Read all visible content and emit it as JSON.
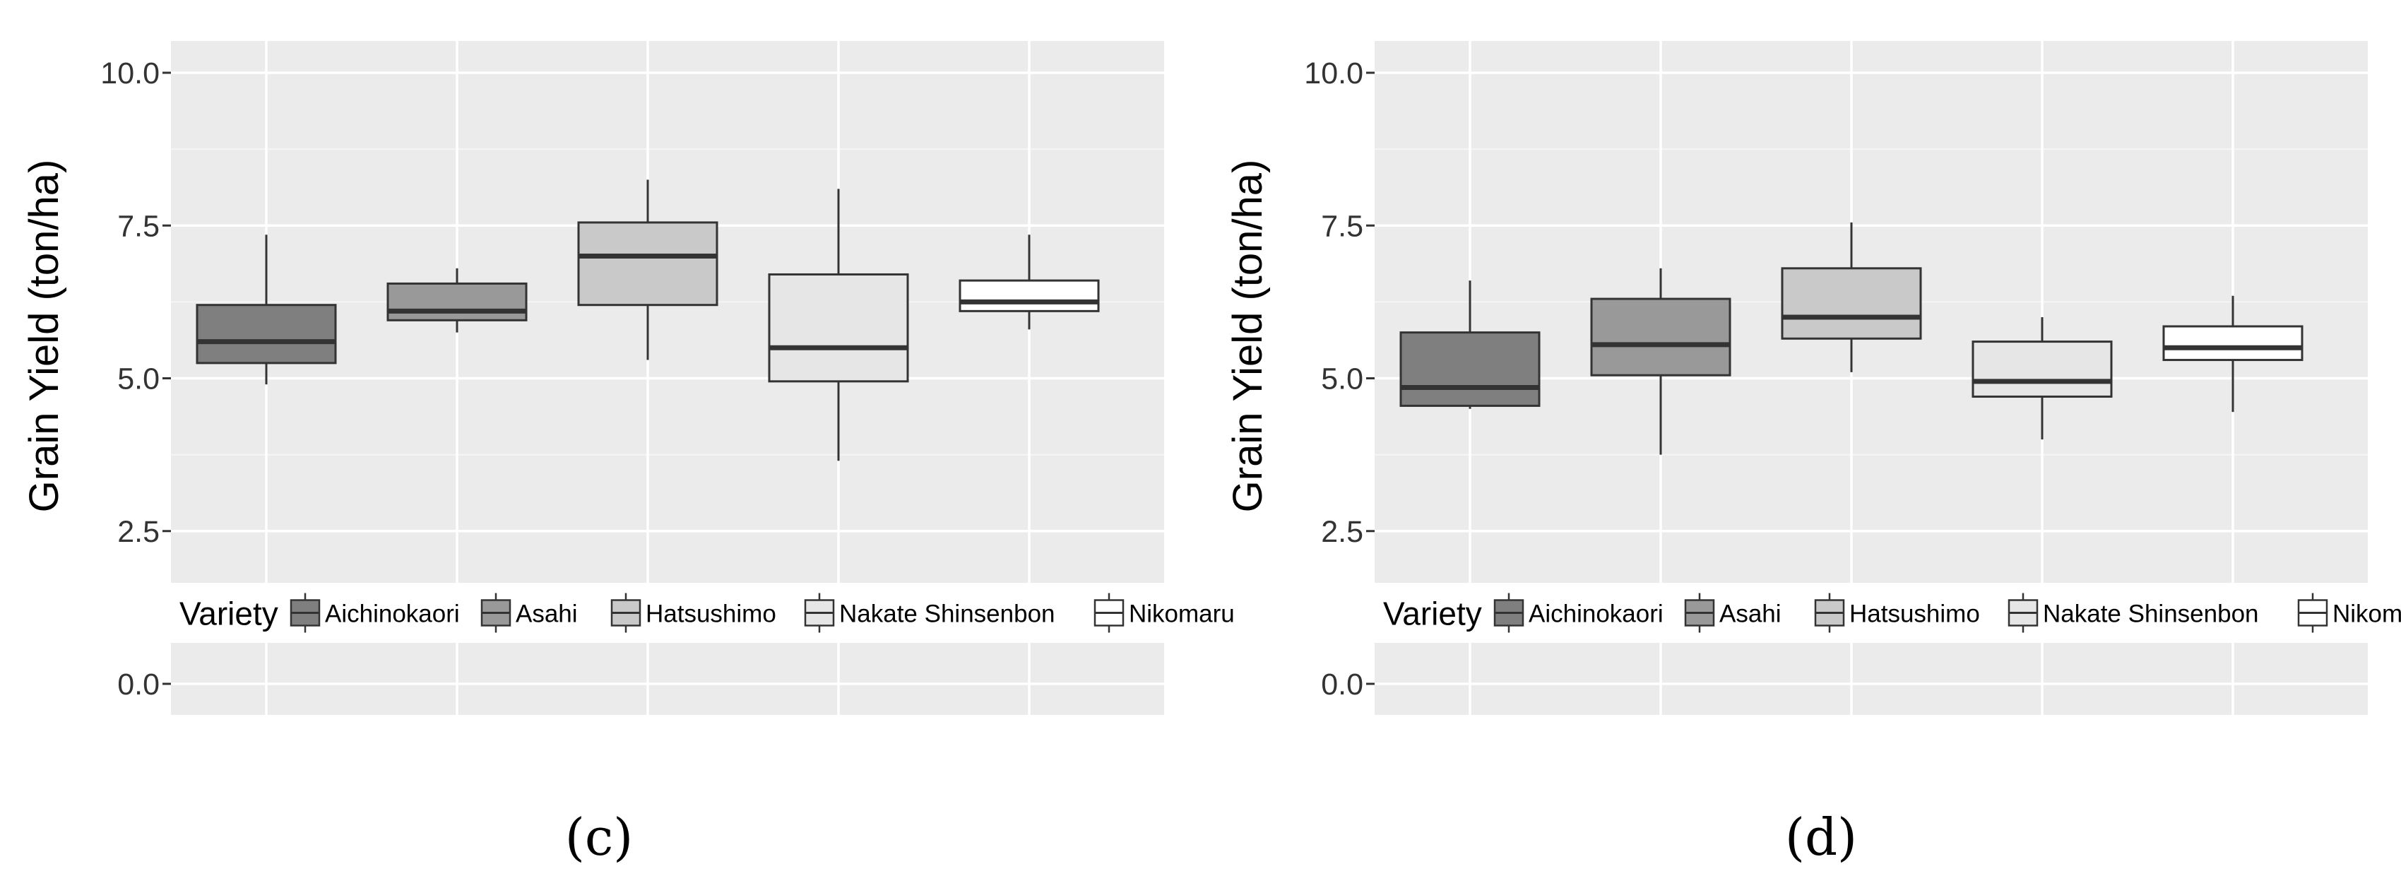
{
  "chart_data": [
    {
      "type": "box",
      "panel_label": "(c)",
      "ylabel": "Grain Yield (ton/ha)",
      "xlabel": "",
      "ylim": [
        0,
        10.5
      ],
      "yticks": [
        0.0,
        2.5,
        5.0,
        7.5,
        10.0
      ],
      "ytick_labels": [
        "0.0",
        "2.5",
        "5.0",
        "7.5",
        "10.0"
      ],
      "grid": true,
      "legend": {
        "title": "Variety",
        "placement": "inside-bottom"
      },
      "categories": [
        "Aichinokaori",
        "Asahi",
        "Hatsushimo",
        "Nakate Shinsenbon",
        "Nikomaru"
      ],
      "fill_colors": [
        "#7f7f7f",
        "#999999",
        "#c9c9c9",
        "#e6e6e6",
        "#ffffff"
      ],
      "boxes": [
        {
          "name": "Aichinokaori",
          "min": 4.9,
          "q1": 5.25,
          "median": 5.6,
          "q3": 6.2,
          "max": 7.35
        },
        {
          "name": "Asahi",
          "min": 5.75,
          "q1": 5.95,
          "median": 6.1,
          "q3": 6.55,
          "max": 6.8
        },
        {
          "name": "Hatsushimo",
          "min": 5.3,
          "q1": 6.2,
          "median": 7.0,
          "q3": 7.55,
          "max": 8.25
        },
        {
          "name": "Nakate Shinsenbon",
          "min": 3.65,
          "q1": 4.95,
          "median": 5.5,
          "q3": 6.7,
          "max": 8.1
        },
        {
          "name": "Nikomaru",
          "min": 5.8,
          "q1": 6.1,
          "median": 6.25,
          "q3": 6.6,
          "max": 7.35
        }
      ]
    },
    {
      "type": "box",
      "panel_label": "(d)",
      "ylabel": "Grain Yield (ton/ha)",
      "xlabel": "",
      "ylim": [
        0,
        10.5
      ],
      "yticks": [
        0.0,
        2.5,
        5.0,
        7.5,
        10.0
      ],
      "ytick_labels": [
        "0.0",
        "2.5",
        "5.0",
        "7.5",
        "10.0"
      ],
      "grid": true,
      "legend": {
        "title": "Variety",
        "placement": "inside-bottom"
      },
      "categories": [
        "Aichinokaori",
        "Asahi",
        "Hatsushimo",
        "Nakate Shinsenbon",
        "Nikomaru"
      ],
      "fill_colors": [
        "#7f7f7f",
        "#999999",
        "#c9c9c9",
        "#e6e6e6",
        "#ffffff"
      ],
      "boxes": [
        {
          "name": "Aichinokaori",
          "min": 4.5,
          "q1": 4.55,
          "median": 4.85,
          "q3": 5.75,
          "max": 6.6
        },
        {
          "name": "Asahi",
          "min": 3.75,
          "q1": 5.05,
          "median": 5.55,
          "q3": 6.3,
          "max": 6.8
        },
        {
          "name": "Hatsushimo",
          "min": 5.1,
          "q1": 5.65,
          "median": 6.0,
          "q3": 6.8,
          "max": 7.55
        },
        {
          "name": "Nakate Shinsenbon",
          "min": 4.0,
          "q1": 4.7,
          "median": 4.95,
          "q3": 5.6,
          "max": 6.0
        },
        {
          "name": "Nikomaru",
          "min": 4.45,
          "q1": 5.3,
          "median": 5.5,
          "q3": 5.85,
          "max": 6.35
        }
      ]
    }
  ]
}
